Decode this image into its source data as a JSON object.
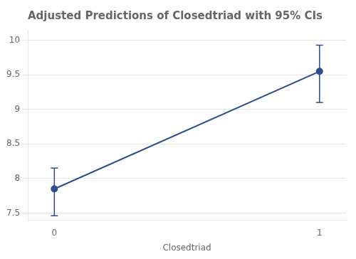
{
  "chart_data": {
    "type": "line",
    "title": "Adjusted Predictions of Closedtriad with 95% CIs",
    "xlabel": "Closedtriad",
    "x": [
      0,
      1
    ],
    "values": [
      7.85,
      9.55
    ],
    "ci_lower": [
      7.46,
      9.1
    ],
    "ci_upper": [
      8.15,
      9.93
    ],
    "color": "#2d4e8a",
    "marker": "circle",
    "xlim": [
      -0.1,
      1.1
    ],
    "xticks": [
      0,
      1
    ],
    "ylim": [
      7.4,
      10.15
    ],
    "yticks": [
      7.5,
      8,
      8.5,
      9,
      9.5,
      10
    ],
    "grid": "y"
  }
}
